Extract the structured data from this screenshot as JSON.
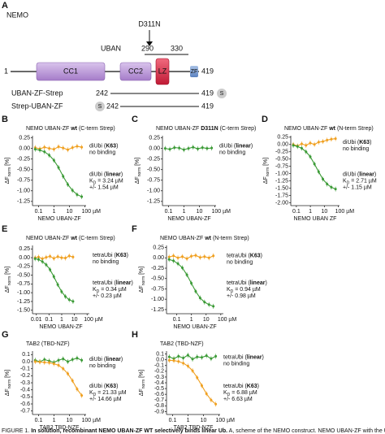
{
  "scheme": {
    "label": "A",
    "protein": "NEMO",
    "mutation": "D311N",
    "uban": "UBAN",
    "uban_start": 290,
    "uban_end": 330,
    "start": 1,
    "end": 419,
    "domains": [
      "CC1",
      "CC2",
      "LZ",
      "ZF"
    ],
    "constructs": [
      {
        "name": "UBAN-ZF-Strep",
        "start": 242,
        "end": 419,
        "tag": "S"
      },
      {
        "name": "Strep-UBAN-ZF",
        "tag": "S",
        "start": 242,
        "end": 419
      }
    ]
  },
  "panels": [
    {
      "label": "B",
      "title": [
        {
          "text": "NEMO UBAN-ZF "
        },
        {
          "text": "wt",
          "bold": true
        },
        {
          "text": " (C-term Strep)"
        }
      ],
      "ylabel": [
        {
          "text": "ΔF"
        },
        {
          "text": "norm",
          "sub": true
        },
        {
          "text": " [%]"
        }
      ],
      "xlabel": "NEMO UBAN-ZF",
      "xlim": [
        0.04,
        120
      ],
      "xticks": [
        0.1,
        1,
        10,
        {
          "value": 100,
          "label": "100 µM"
        }
      ],
      "ylim": [
        -1.35,
        0.3
      ],
      "yticks": [
        0.25,
        {
          "value": 0,
          "label": "0.00"
        },
        -0.25,
        {
          "value": -0.5,
          "label": "-0.50"
        },
        -0.75,
        {
          "value": -1,
          "label": "-1.00"
        },
        -1.25
      ],
      "x": [
        0.06,
        0.12,
        0.24,
        0.49,
        0.98,
        1.95,
        3.9,
        7.8,
        15.6,
        31.3,
        62.5
      ],
      "series": [
        {
          "color": "#f0a020",
          "values": [
            0.02,
            -0.01,
            0.03,
            0,
            -0.02,
            0.04,
            0.01,
            -0.03,
            0.02,
            0.05,
            0.03
          ]
        },
        {
          "color": "#3a9a35",
          "values": [
            -0.02,
            -0.04,
            -0.08,
            -0.16,
            -0.28,
            -0.45,
            -0.66,
            -0.85,
            -0.99,
            -1.09,
            -1.14
          ]
        }
      ],
      "annotations": [
        [
          [
            {
              "text": "diUbi ("
            },
            {
              "text": "K63",
              "bold": true
            },
            {
              "text": ")"
            }
          ],
          [
            {
              "text": "no binding"
            }
          ]
        ],
        [
          [
            {
              "text": "diUbi ("
            },
            {
              "text": "linear",
              "bold": true
            },
            {
              "text": ")"
            }
          ],
          [
            {
              "text": "K"
            },
            {
              "text": "D",
              "sub": true
            },
            {
              "text": " = 3.24 µM"
            }
          ],
          [
            {
              "text": "+/- 1.54 µM"
            }
          ]
        ]
      ]
    },
    {
      "label": "C",
      "title": [
        {
          "text": "NEMO UBAN-ZF "
        },
        {
          "text": "D311N",
          "bold": true
        },
        {
          "text": " (C-term Strep)"
        }
      ],
      "ylabel": [
        {
          "text": "ΔF"
        },
        {
          "text": "norm",
          "sub": true
        },
        {
          "text": " [%]"
        }
      ],
      "xlabel": "NEMO UBAN-ZF",
      "xlim": [
        0.04,
        120
      ],
      "xticks": [
        0.1,
        1,
        10,
        {
          "value": 100,
          "label": "100 µM"
        }
      ],
      "ylim": [
        -1.35,
        0.3
      ],
      "yticks": [
        0.25,
        {
          "value": 0,
          "label": "0.00"
        },
        -0.25,
        {
          "value": -0.5,
          "label": "-0.50"
        },
        -0.75,
        {
          "value": -1,
          "label": "-1.00"
        },
        -1.25
      ],
      "x": [
        0.06,
        0.12,
        0.24,
        0.49,
        0.98,
        1.95,
        3.9,
        7.8,
        15.6,
        31.3,
        62.5
      ],
      "series": [
        {
          "color": "#3a9a35",
          "values": [
            0,
            -0.02,
            0.02,
            0.01,
            -0.03,
            0,
            0.03,
            -0.01,
            0.02,
            0,
            0.01
          ]
        }
      ],
      "annotations": [
        [
          [
            {
              "text": "diUbi ("
            },
            {
              "text": "linear",
              "bold": true
            },
            {
              "text": ")"
            }
          ],
          [
            {
              "text": "no binding"
            }
          ]
        ]
      ]
    },
    {
      "label": "D",
      "title": [
        {
          "text": "NEMO UBAN-ZF "
        },
        {
          "text": "wt",
          "bold": true
        },
        {
          "text": " (N-term Strep)"
        }
      ],
      "ylabel": [
        {
          "text": "ΔF"
        },
        {
          "text": "norm",
          "sub": true
        },
        {
          "text": " [%]"
        }
      ],
      "xlabel": "NEMO UBAN ZF",
      "xlim": [
        0.04,
        120
      ],
      "xticks": [
        0.1,
        1,
        10,
        {
          "value": 100,
          "label": "100 µM"
        }
      ],
      "ylim": [
        -2.1,
        0.3
      ],
      "yticks": [
        0.25,
        {
          "value": 0,
          "label": "0.00"
        },
        -0.25,
        {
          "value": -0.5,
          "label": "-0.50"
        },
        -0.75,
        {
          "value": -1,
          "label": "-1.00"
        },
        -1.25,
        {
          "value": -1.5,
          "label": "-1.50"
        },
        -1.75,
        {
          "value": -2,
          "label": "-2.00"
        }
      ],
      "x": [
        0.06,
        0.12,
        0.24,
        0.49,
        0.98,
        1.95,
        3.9,
        7.8,
        15.6,
        31.3,
        62.5
      ],
      "series": [
        {
          "color": "#f0a020",
          "values": [
            0,
            -0.05,
            0.02,
            -0.03,
            0.05,
            0,
            0.08,
            0.1,
            0.15,
            0.18,
            0.2
          ]
        },
        {
          "color": "#3a9a35",
          "values": [
            -0.03,
            -0.07,
            -0.13,
            -0.25,
            -0.42,
            -0.67,
            -0.94,
            -1.19,
            -1.36,
            -1.47,
            -1.53
          ]
        }
      ],
      "annotations": [
        [
          [
            {
              "text": "diUbi ("
            },
            {
              "text": "K63",
              "bold": true
            },
            {
              "text": ")"
            }
          ],
          [
            {
              "text": "no binding"
            }
          ]
        ],
        [
          [
            {
              "text": "diUbi ("
            },
            {
              "text": "linear",
              "bold": true
            },
            {
              "text": ")"
            }
          ],
          [
            {
              "text": "K"
            },
            {
              "text": "D",
              "sub": true
            },
            {
              "text": " = 2.71 µM"
            }
          ],
          [
            {
              "text": "+/- 1.15 µM"
            }
          ]
        ]
      ]
    },
    {
      "label": "E",
      "title": [
        {
          "text": "NEMO UBAN-ZF "
        },
        {
          "text": "wt",
          "bold": true
        },
        {
          "text": " (C-term Strep)"
        }
      ],
      "ylabel": [
        {
          "text": "ΔF"
        },
        {
          "text": "norm",
          "sub": true
        },
        {
          "text": " [%]"
        }
      ],
      "xlabel": "NEMO UBAN-ZF",
      "xlim": [
        0.005,
        150
      ],
      "xticks": [
        0.01,
        0.1,
        1,
        10,
        {
          "value": 100,
          "label": "100 µM"
        }
      ],
      "ylim": [
        -1.6,
        0.35
      ],
      "yticks": [
        0.25,
        {
          "value": 0,
          "label": "0.00"
        },
        -0.25,
        {
          "value": -0.5,
          "label": "-0.50"
        },
        -0.75,
        {
          "value": -1,
          "label": "-1.00"
        },
        -1.25,
        {
          "value": -1.5,
          "label": "-1.50"
        }
      ],
      "x": [
        0.008,
        0.015,
        0.03,
        0.06,
        0.12,
        0.24,
        0.49,
        0.98,
        1.95,
        3.9,
        7.8
      ],
      "series": [
        {
          "color": "#f0a020",
          "values": [
            0,
            0.02,
            -0.03,
            0.01,
            0.04,
            -0.02,
            0.03,
            0,
            -0.01,
            0.05,
            0.02
          ]
        },
        {
          "color": "#3a9a35",
          "values": [
            -0.03,
            -0.05,
            -0.11,
            -0.2,
            -0.34,
            -0.54,
            -0.77,
            -0.97,
            -1.11,
            -1.2,
            -1.25
          ]
        }
      ],
      "annotations": [
        [
          [
            {
              "text": "tetraUbi ("
            },
            {
              "text": "K63",
              "bold": true
            },
            {
              "text": ")"
            }
          ],
          [
            {
              "text": "no binding"
            }
          ]
        ],
        [
          [
            {
              "text": "tetraUbi ("
            },
            {
              "text": "linear",
              "bold": true
            },
            {
              "text": ")"
            }
          ],
          [
            {
              "text": "K"
            },
            {
              "text": "D",
              "sub": true
            },
            {
              "text": " = 0.34 µM"
            }
          ],
          [
            {
              "text": "+/- 0.23 µM"
            }
          ]
        ]
      ]
    },
    {
      "label": "F",
      "title": [
        {
          "text": "NEMO UBAN-ZF "
        },
        {
          "text": "wt",
          "bold": true
        },
        {
          "text": " (N-term Strep)"
        }
      ],
      "ylabel": [
        {
          "text": "ΔF"
        },
        {
          "text": "norm",
          "sub": true
        },
        {
          "text": " [%]"
        }
      ],
      "xlabel": "NEMO UBAN-ZF",
      "xlim": [
        0.02,
        150
      ],
      "xticks": [
        0.1,
        1,
        10,
        {
          "value": 100,
          "label": "100 µM"
        }
      ],
      "ylim": [
        -1.35,
        0.3
      ],
      "yticks": [
        0.25,
        {
          "value": 0,
          "label": "0.00"
        },
        -0.25,
        {
          "value": -0.5,
          "label": "-0.50"
        },
        -0.75,
        {
          "value": -1,
          "label": "-1.00"
        },
        -1.25
      ],
      "x": [
        0.03,
        0.06,
        0.12,
        0.24,
        0.49,
        0.98,
        1.95,
        3.9,
        7.8,
        15.6,
        31.3
      ],
      "series": [
        {
          "color": "#f0a020",
          "values": [
            0.02,
            0.05,
            0,
            0.03,
            -0.02,
            0.04,
            0.06,
            0.01,
            0.03,
            0,
            0.05
          ]
        },
        {
          "color": "#3a9a35",
          "values": [
            -0.04,
            -0.07,
            -0.14,
            -0.24,
            -0.41,
            -0.61,
            -0.81,
            -0.97,
            -1.07,
            -1.13,
            -1.17
          ]
        }
      ],
      "annotations": [
        [
          [
            {
              "text": "tetraUbi ("
            },
            {
              "text": "K63",
              "bold": true
            },
            {
              "text": ")"
            }
          ],
          [
            {
              "text": "no binding"
            }
          ]
        ],
        [
          [
            {
              "text": "tetraUbi ("
            },
            {
              "text": "linear",
              "bold": true
            },
            {
              "text": ")"
            }
          ],
          [
            {
              "text": "K"
            },
            {
              "text": "D",
              "sub": true
            },
            {
              "text": " = 0.94 µM"
            }
          ],
          [
            {
              "text": "+/- 0.98 µM"
            }
          ]
        ]
      ]
    },
    {
      "label": "G",
      "title": [
        {
          "text": "TAB2 (TBD-NZF)"
        }
      ],
      "ylabel": [
        {
          "text": "ΔF"
        },
        {
          "text": "norm",
          "sub": true
        },
        {
          "text": " [%]"
        }
      ],
      "xlabel": "TAB2 TBD-NZF",
      "xlim": [
        0.04,
        120
      ],
      "xticks": [
        0.1,
        1,
        10,
        {
          "value": 100,
          "label": "100 µM"
        }
      ],
      "ylim": [
        -0.75,
        0.15
      ],
      "yticks": [
        0.1,
        {
          "value": 0,
          "label": "0.0"
        },
        -0.1,
        -0.2,
        -0.3,
        -0.4,
        -0.5,
        -0.6,
        -0.7
      ],
      "x": [
        0.06,
        0.12,
        0.24,
        0.49,
        0.98,
        1.95,
        3.9,
        7.8,
        15.6,
        31.3,
        62.5
      ],
      "series": [
        {
          "color": "#3a9a35",
          "values": [
            0.02,
            0,
            0.03,
            0.01,
            -0.01,
            0.02,
            0.04,
            0,
            0.03,
            0.05,
            0.02
          ]
        },
        {
          "color": "#f0a020",
          "values": [
            0,
            -0.005,
            -0.01,
            -0.015,
            -0.03,
            -0.05,
            -0.1,
            -0.17,
            -0.27,
            -0.39,
            -0.48
          ]
        }
      ],
      "annotations": [
        [
          [
            {
              "text": "diUbi ("
            },
            {
              "text": "linear",
              "bold": true
            },
            {
              "text": ")"
            }
          ],
          [
            {
              "text": "no binding"
            }
          ]
        ],
        [
          [
            {
              "text": "diUbi ("
            },
            {
              "text": "K63",
              "bold": true
            },
            {
              "text": ")"
            }
          ],
          [
            {
              "text": "K"
            },
            {
              "text": "D",
              "sub": true
            },
            {
              "text": " = 21.33 µM"
            }
          ],
          [
            {
              "text": "+/- 14.66 µM"
            }
          ]
        ]
      ]
    },
    {
      "label": "H",
      "title": [
        {
          "text": "TAB2 (TBD-NZF)"
        }
      ],
      "ylabel": [
        {
          "text": "ΔF"
        },
        {
          "text": "norm",
          "sub": true
        },
        {
          "text": " [%]"
        }
      ],
      "xlabel": "TAB2 TBD-NZF",
      "xlim": [
        0.04,
        120
      ],
      "xticks": [
        0.1,
        1,
        10,
        {
          "value": 100,
          "label": "100 µM"
        }
      ],
      "ylim": [
        -0.95,
        0.15
      ],
      "yticks": [
        0.1,
        {
          "value": 0,
          "label": "0.0"
        },
        -0.1,
        -0.2,
        -0.3,
        -0.4,
        -0.5,
        -0.6,
        -0.7,
        -0.8,
        -0.9
      ],
      "x": [
        0.06,
        0.12,
        0.24,
        0.49,
        0.98,
        1.95,
        3.9,
        7.8,
        15.6,
        31.3,
        62.5
      ],
      "series": [
        {
          "color": "#3a9a35",
          "values": [
            0.05,
            0.02,
            0.06,
            0.03,
            0.08,
            0.01,
            0.05,
            0.04,
            0.07,
            0.02,
            0.06
          ]
        },
        {
          "color": "#f0a020",
          "values": [
            -0.01,
            -0.015,
            -0.03,
            -0.06,
            -0.11,
            -0.19,
            -0.31,
            -0.45,
            -0.59,
            -0.7,
            -0.77
          ]
        }
      ],
      "annotations": [
        [
          [
            {
              "text": "tetraUbi ("
            },
            {
              "text": "linear",
              "bold": true
            },
            {
              "text": ")"
            }
          ],
          [
            {
              "text": "no binding"
            }
          ]
        ],
        [
          [
            {
              "text": "tetraUbi ("
            },
            {
              "text": "K63",
              "bold": true
            },
            {
              "text": ")"
            }
          ],
          [
            {
              "text": "K"
            },
            {
              "text": "D",
              "sub": true
            },
            {
              "text": " = 6.88 µM"
            }
          ],
          [
            {
              "text": "+/- 6.63 µM"
            }
          ]
        ]
      ]
    }
  ],
  "caption": [
    {
      "text": "FIGURE 1. "
    },
    {
      "text": "In solution, recombinant NEMO UBAN-ZF WT selectively binds linear Ub.",
      "bold": true
    },
    {
      "text": " A, scheme of the NEMO construct. NEMO UBAN-ZF with the UBAN"
    }
  ]
}
